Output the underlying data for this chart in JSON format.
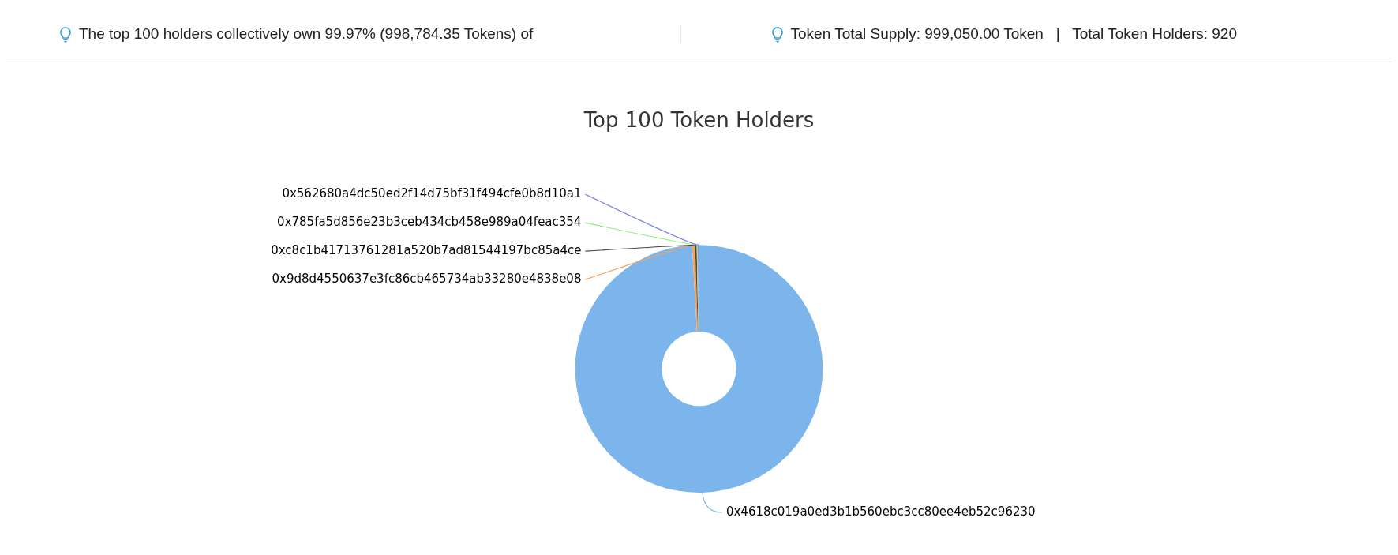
{
  "chart_data": {
    "type": "donut",
    "title": "Top 100 Token Holders",
    "annotations": [
      "The top 100 holders collectively own 99.97% (998,784.35 Tokens) of",
      "Token Total Supply: 999,050.00 Token   |   Total Token Holders: 920"
    ],
    "categories": [
      "0x4618c019a0ed3b1b560ebc3cc80ee4eb52c96230",
      "0x9d8d4550637e3fc86cb465734ab33280e4838e08",
      "0xc8c1b41713761281a520b7ad81544197bc85a4ce",
      "0x785fa5d856e23b3ceb434cb458e989a04feac354",
      "0x562680a4dc50ed2f14d75bf31f494cfe0b8d10a1"
    ],
    "values": [
      99.1,
      0.4,
      0.2,
      0.15,
      0.15
    ],
    "colors": [
      "#7cb5ec",
      "#f7a35c",
      "#434348",
      "#90ed7d",
      "#8085e9"
    ],
    "legend": false
  }
}
